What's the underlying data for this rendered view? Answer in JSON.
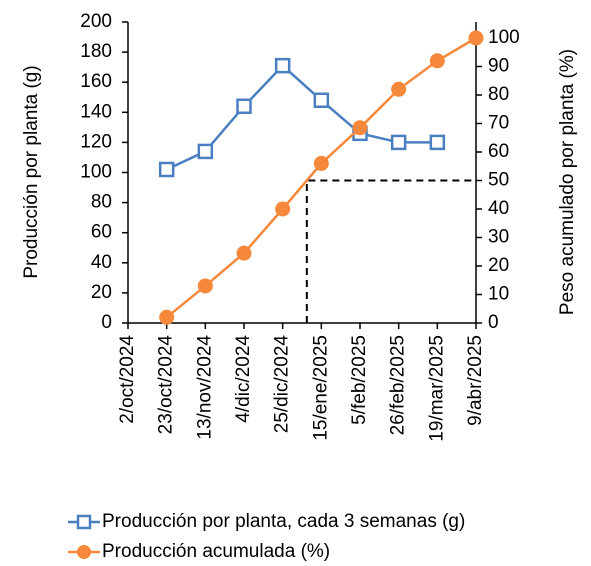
{
  "chart_data": {
    "type": "line",
    "categories": [
      "2/oct/2024",
      "23/oct/2024",
      "13/nov/2024",
      "4/dic/2024",
      "25/dic/2024",
      "15/ene/2025",
      "5/feb/2025",
      "26/feb/2025",
      "19/mar/2025",
      "9/abr/2025"
    ],
    "series": [
      {
        "name": "Producción por planta, cada 3 semanas (g)",
        "color": "#4a7fc1",
        "marker": "square",
        "values": [
          null,
          102,
          114,
          144,
          171,
          148,
          126,
          120,
          120,
          null
        ]
      },
      {
        "name": "Producción acumulada (%)",
        "color": "#f5883a",
        "marker": "circle",
        "axis": "y2",
        "values": [
          null,
          2,
          13,
          24.5,
          40,
          56,
          68.5,
          82,
          92,
          100
        ]
      }
    ],
    "y_label": "Producción por planta (g)",
    "y2_label": "Peso acumulado por planta (%)",
    "ylim": [
      0,
      200
    ],
    "yticks": [
      0,
      20,
      40,
      60,
      80,
      100,
      120,
      140,
      160,
      180,
      200
    ],
    "y2lim": [
      0,
      100
    ],
    "y2ticks": [
      0,
      10,
      20,
      30,
      40,
      50,
      60,
      70,
      80,
      90,
      100
    ],
    "reference_y2": 50,
    "grid": false,
    "legend": "bottom"
  }
}
